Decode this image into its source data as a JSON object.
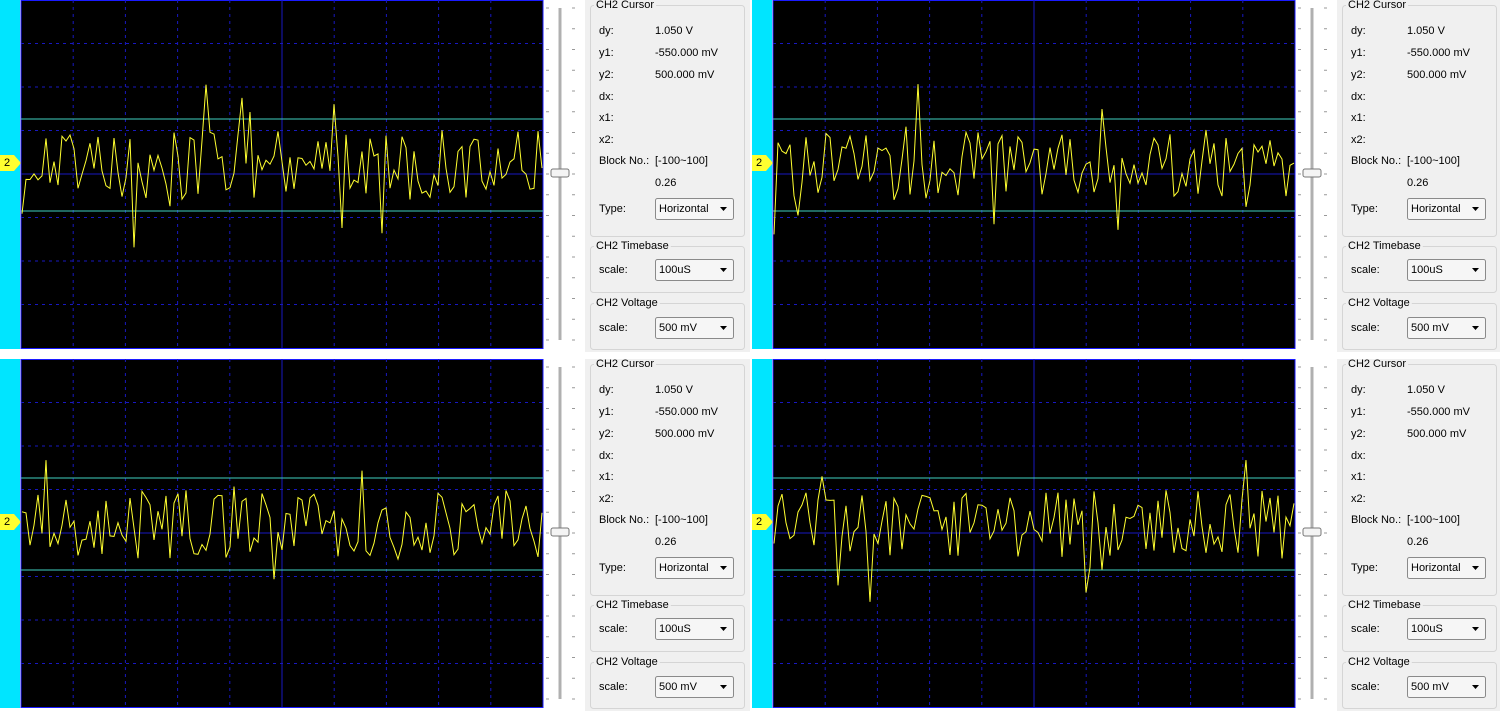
{
  "panels": [
    {
      "channel_marker": "2",
      "cursor": {
        "title": "CH2 Cursor",
        "rows": [
          {
            "label": "dy:",
            "value": "1.050 V"
          },
          {
            "label": "y1:",
            "value": "-550.000 mV"
          },
          {
            "label": "y2:",
            "value": "500.000 mV"
          },
          {
            "label": "dx:"
          },
          {
            "label": "x1:"
          },
          {
            "label": "x2:"
          },
          {
            "label": "Block No.:",
            "value": "[-100~100]"
          }
        ],
        "block_value": "0.26",
        "type_label": "Type:",
        "type_value": "Horizontal"
      },
      "timebase": {
        "title": "CH2 Timebase",
        "label": "scale:",
        "value": "100uS"
      },
      "voltage": {
        "title": "CH2 Voltage",
        "label": "scale:",
        "value": "500 mV"
      }
    },
    {
      "channel_marker": "2",
      "cursor": {
        "title": "CH2 Cursor",
        "rows": [
          {
            "label": "dy:",
            "value": "1.050 V"
          },
          {
            "label": "y1:",
            "value": "-550.000 mV"
          },
          {
            "label": "y2:",
            "value": "500.000 mV"
          },
          {
            "label": "dx:"
          },
          {
            "label": "x1:"
          },
          {
            "label": "x2:"
          },
          {
            "label": "Block No.:",
            "value": "[-100~100]"
          }
        ],
        "block_value": "0.26",
        "type_label": "Type:",
        "type_value": "Horizontal"
      },
      "timebase": {
        "title": "CH2 Timebase",
        "label": "scale:",
        "value": "100uS"
      },
      "voltage": {
        "title": "CH2 Voltage",
        "label": "scale:",
        "value": "500 mV"
      }
    },
    {
      "channel_marker": "2",
      "cursor": {
        "title": "CH2 Cursor",
        "rows": [
          {
            "label": "dy:",
            "value": "1.050 V"
          },
          {
            "label": "y1:",
            "value": "-550.000 mV"
          },
          {
            "label": "y2:",
            "value": "500.000 mV"
          },
          {
            "label": "dx:"
          },
          {
            "label": "x1:"
          },
          {
            "label": "x2:"
          },
          {
            "label": "Block No.:",
            "value": "[-100~100]"
          }
        ],
        "block_value": "0.26",
        "type_label": "Type:",
        "type_value": "Horizontal"
      },
      "timebase": {
        "title": "CH2 Timebase",
        "label": "scale:",
        "value": "100uS"
      },
      "voltage": {
        "title": "CH2 Voltage",
        "label": "scale:",
        "value": "500 mV"
      }
    },
    {
      "channel_marker": "2",
      "cursor": {
        "title": "CH2 Cursor",
        "rows": [
          {
            "label": "dy:",
            "value": "1.050 V"
          },
          {
            "label": "y1:",
            "value": "-550.000 mV"
          },
          {
            "label": "y2:",
            "value": "500.000 mV"
          },
          {
            "label": "dx:"
          },
          {
            "label": "x1:"
          },
          {
            "label": "x2:"
          },
          {
            "label": "Block No.:",
            "value": "[-100~100]"
          }
        ],
        "block_value": "0.26",
        "type_label": "Type:",
        "type_value": "Horizontal"
      },
      "timebase": {
        "title": "CH2 Timebase",
        "label": "scale:",
        "value": "100uS"
      },
      "voltage": {
        "title": "CH2 Voltage",
        "label": "scale:",
        "value": "500 mV"
      }
    }
  ]
}
